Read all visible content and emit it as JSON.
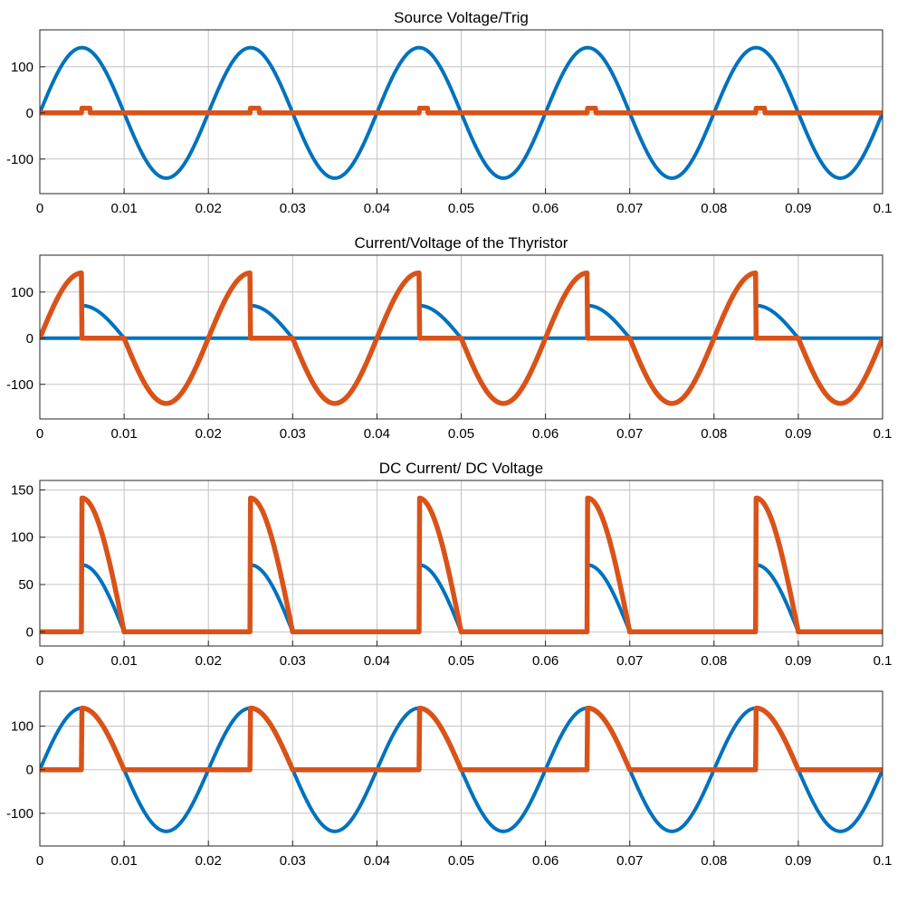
{
  "colors": {
    "series_blue": "#0072BD",
    "series_orange": "#D95319",
    "grid": "#c4c4c4",
    "axis": "#262626"
  },
  "chart_data": [
    {
      "type": "line",
      "title": "Source Voltage/Trig",
      "xlim": [
        0,
        0.1
      ],
      "ylim": [
        -175,
        180
      ],
      "grid": true,
      "xticks": [
        "0",
        "0.01",
        "0.02",
        "0.03",
        "0.04",
        "0.05",
        "0.06",
        "0.07",
        "0.08",
        "0.09",
        "0.1"
      ],
      "yticks": [
        "100",
        "0",
        "-100"
      ],
      "series": [
        {
          "color": "#0072BD",
          "description": "sine, amplitude 141.4, period 0.02",
          "x": [
            0,
            0.005,
            0.01,
            0.015,
            0.02,
            0.025,
            0.03,
            0.035,
            0.04,
            0.045,
            0.05,
            0.055,
            0.06,
            0.065,
            0.07,
            0.075,
            0.08,
            0.085,
            0.09,
            0.095,
            0.1
          ],
          "y": [
            0,
            141.4,
            0,
            -141.4,
            0,
            141.4,
            0,
            -141.4,
            0,
            141.4,
            0,
            -141.4,
            0,
            141.4,
            0,
            -141.4,
            0,
            141.4,
            0,
            -141.4,
            0
          ]
        },
        {
          "color": "#D95319",
          "description": "trigger pulses of height 10 from 0.005 to 0.006 each 0.02",
          "pulse_starts": [
            0.005,
            0.025,
            0.045,
            0.065,
            0.085
          ],
          "pulse_width": 0.001,
          "pulse_height": 10
        }
      ]
    },
    {
      "type": "line",
      "title": "Current/Voltage of the Thyristor",
      "xlim": [
        0,
        0.1
      ],
      "ylim": [
        -175,
        180
      ],
      "grid": true,
      "xticks": [
        "0",
        "0.01",
        "0.02",
        "0.03",
        "0.04",
        "0.05",
        "0.06",
        "0.07",
        "0.08",
        "0.09",
        "0.1"
      ],
      "yticks": [
        "100",
        "0",
        "-100"
      ],
      "series": [
        {
          "color": "#0072BD",
          "description": "thyristor current: 0.5*sine during 0.005-0.01 of each period, else 0",
          "x": [
            0.005,
            0.0075,
            0.01,
            0.025,
            0.03,
            0.045,
            0.05,
            0.065,
            0.07,
            0.085,
            0.09
          ],
          "y": [
            70.7,
            50,
            0,
            70.7,
            0,
            70.7,
            0,
            70.7,
            0,
            70.7,
            0
          ]
        },
        {
          "color": "#D95319",
          "description": "thyristor voltage: sine except 0 during conduction 0.005-0.01",
          "x": [
            0,
            0.005,
            0.01,
            0.015,
            0.02,
            0.025,
            0.03,
            0.035,
            0.04,
            0.045,
            0.05,
            0.055,
            0.06,
            0.065,
            0.07,
            0.075,
            0.08,
            0.085,
            0.09,
            0.095,
            0.1
          ],
          "y": [
            0,
            141.4,
            0,
            -141.4,
            0,
            141.4,
            0,
            -141.4,
            0,
            141.4,
            0,
            -141.4,
            0,
            141.4,
            0,
            -141.4,
            0,
            141.4,
            0,
            -141.4,
            0
          ]
        }
      ]
    },
    {
      "type": "line",
      "title": "DC Current/ DC Voltage",
      "xlim": [
        0,
        0.1
      ],
      "ylim": [
        -15,
        160
      ],
      "grid": true,
      "xticks": [
        "0",
        "0.01",
        "0.02",
        "0.03",
        "0.04",
        "0.05",
        "0.06",
        "0.07",
        "0.08",
        "0.09",
        "0.1"
      ],
      "yticks": [
        "150",
        "100",
        "50",
        "0"
      ],
      "series": [
        {
          "color": "#0072BD",
          "description": "DC current 0.5*sine during 0.005-0.01",
          "x": [
            0.005,
            0.01,
            0.025,
            0.03,
            0.045,
            0.05,
            0.065,
            0.07,
            0.085,
            0.09
          ],
          "y": [
            70.7,
            0,
            70.7,
            0,
            70.7,
            0,
            70.7,
            0,
            70.7,
            0
          ]
        },
        {
          "color": "#D95319",
          "description": "DC voltage sine during 0.005-0.01",
          "x": [
            0.005,
            0.01,
            0.025,
            0.03,
            0.045,
            0.05,
            0.065,
            0.07,
            0.085,
            0.09
          ],
          "y": [
            141.4,
            0,
            141.4,
            0,
            141.4,
            0,
            141.4,
            0,
            141.4,
            0
          ]
        }
      ]
    },
    {
      "type": "line",
      "title": "",
      "xlim": [
        0,
        0.1
      ],
      "ylim": [
        -175,
        180
      ],
      "grid": true,
      "xticks": [
        "0",
        "0.01",
        "0.02",
        "0.03",
        "0.04",
        "0.05",
        "0.06",
        "0.07",
        "0.08",
        "0.09",
        "0.1"
      ],
      "yticks": [
        "100",
        "0",
        "-100"
      ],
      "series": [
        {
          "color": "#0072BD",
          "description": "source sine, amplitude 141.4",
          "x": [
            0,
            0.005,
            0.01,
            0.015,
            0.02,
            0.025,
            0.03,
            0.035,
            0.04,
            0.045,
            0.05,
            0.055,
            0.06,
            0.065,
            0.07,
            0.075,
            0.08,
            0.085,
            0.09,
            0.095,
            0.1
          ],
          "y": [
            0,
            141.4,
            0,
            -141.4,
            0,
            141.4,
            0,
            -141.4,
            0,
            141.4,
            0,
            -141.4,
            0,
            141.4,
            0,
            -141.4,
            0,
            141.4,
            0,
            -141.4,
            0
          ]
        },
        {
          "color": "#D95319",
          "description": "load voltage sine during 0.005-0.01",
          "x": [
            0.005,
            0.01,
            0.025,
            0.03,
            0.045,
            0.05,
            0.065,
            0.07,
            0.085,
            0.09
          ],
          "y": [
            141.4,
            0,
            141.4,
            0,
            141.4,
            0,
            141.4,
            0,
            141.4,
            0
          ]
        }
      ]
    }
  ]
}
